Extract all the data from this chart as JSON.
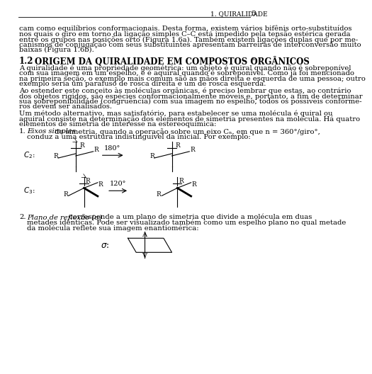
{
  "page_header": "1. QUIRALIDADE",
  "page_number": "5",
  "bg_color": "#ffffff",
  "text_color": "#000000",
  "font_size_body": 7.2,
  "font_size_section": 8.5,
  "font_size_header": 6.5,
  "section_number": "1.2",
  "section_title": "ORIGEM DA QUIRALIDADE EM COMPOSTOS ORGÂNICOS",
  "section_superscript": "a",
  "paragraph1": "A quiralidade é uma propriedade geométrica: um objeto é quiral quando não é sobreponível\ncom sua imagem em um espelho, e é aquiral quando é sobreponível. Como já foi mencionado\nna primeira seção, o exemplo mais comum são as mãos direita e esquerda de uma pessoa; outro\nexemplo seria um parafuso de rosca direita e um de rosca esquerda.",
  "paragraph2": "Ao estender este conceito às moléculas orgânicas, é preciso lembrar que estas, ao contrário\ndos objetos rígidos, são espécies conformacionalmente móveis e, portanto, a fim de determinar\nsua sobreponibilidade (congruência) com sua imagem no espelho, todos os possíveis confórme-\nros devem ser analisados.",
  "paragraph3": "Um método alternativo, mas satisfatório, para estabelecer se uma molécula é quiral ou\naquiral consiste na determinação dos elementos de simetria presentes na molécula. Há quatro\nelementos de simetria de interesse na estereoquímica:",
  "paragraph4": "cam como equilíbrios conformacionais. Desta forma, existem vários bifênis orto-substituídos\nnos quais o giro em torno da ligação simples C–C está impedido pela tensão estérica gerada\nentre os grupos nas posições orto (Figura 1.6a). Também existem ligações duplas que por me-\ncanismos de conjugação com seus substituintes apresentam barreiras de interconversão muito\nbaixas (Figura 1.6b).",
  "item1_lead": "Eixos simples",
  "item1_rest": " de simetria, quando a operação sobre um eixo Cₙ, em que n = 360°/giro°,",
  "item1_line2": "conduz a uma estrutura indistinguível da inicial. Por exemplo:",
  "item2_lead": "Plano de reflexão (σ)",
  "item2_rest": " corresponde a um plano de simetria que divide a molécula em duas",
  "item2_line2": "metades idênticas. Pode ser visualizado também como um espelho plano no qual metade",
  "item2_line3": "da molécula reflete sua imagem enantiomérica:"
}
